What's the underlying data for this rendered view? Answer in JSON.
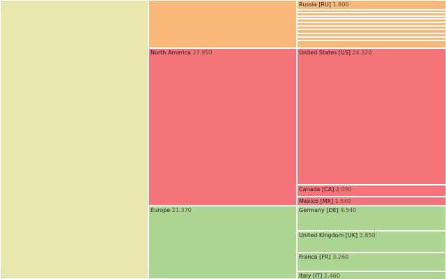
{
  "chart_data": {
    "type": "treemap",
    "colors": {
      "root": "#e6e6ad",
      "group_top": "#f8b87a",
      "north_america": "#f47378",
      "europe": "#acd592",
      "border": "#ffffff"
    },
    "groups": [
      {
        "key": "top",
        "name": "",
        "value": "",
        "color_key": "group_top",
        "children": [
          {
            "name": "Russia [RU]",
            "value": "1.800"
          },
          {
            "name": "",
            "value": ""
          },
          {
            "name": "",
            "value": ""
          },
          {
            "name": "",
            "value": ""
          },
          {
            "name": "",
            "value": ""
          },
          {
            "name": "",
            "value": ""
          },
          {
            "name": "",
            "value": ""
          },
          {
            "name": "",
            "value": ""
          },
          {
            "name": "",
            "value": ""
          },
          {
            "name": "",
            "value": ""
          },
          {
            "name": "",
            "value": ""
          }
        ]
      },
      {
        "key": "north-america",
        "name": "North America",
        "value": "27.950",
        "color_key": "north_america",
        "children": [
          {
            "name": "United States [US]",
            "value": "24.320"
          },
          {
            "name": "Canada [CA]",
            "value": "2.090"
          },
          {
            "name": "Mexico [MX]",
            "value": "1.540"
          }
        ]
      },
      {
        "key": "europe",
        "name": "Europe",
        "value": "21.370",
        "color_key": "europe",
        "children": [
          {
            "name": "Germany [DE]",
            "value": "4.540"
          },
          {
            "name": "United Kingdom [UK]",
            "value": "3.850"
          },
          {
            "name": "France [FR]",
            "value": "3.260"
          },
          {
            "name": "Italy [IT]",
            "value": "2.460"
          }
        ]
      }
    ]
  }
}
